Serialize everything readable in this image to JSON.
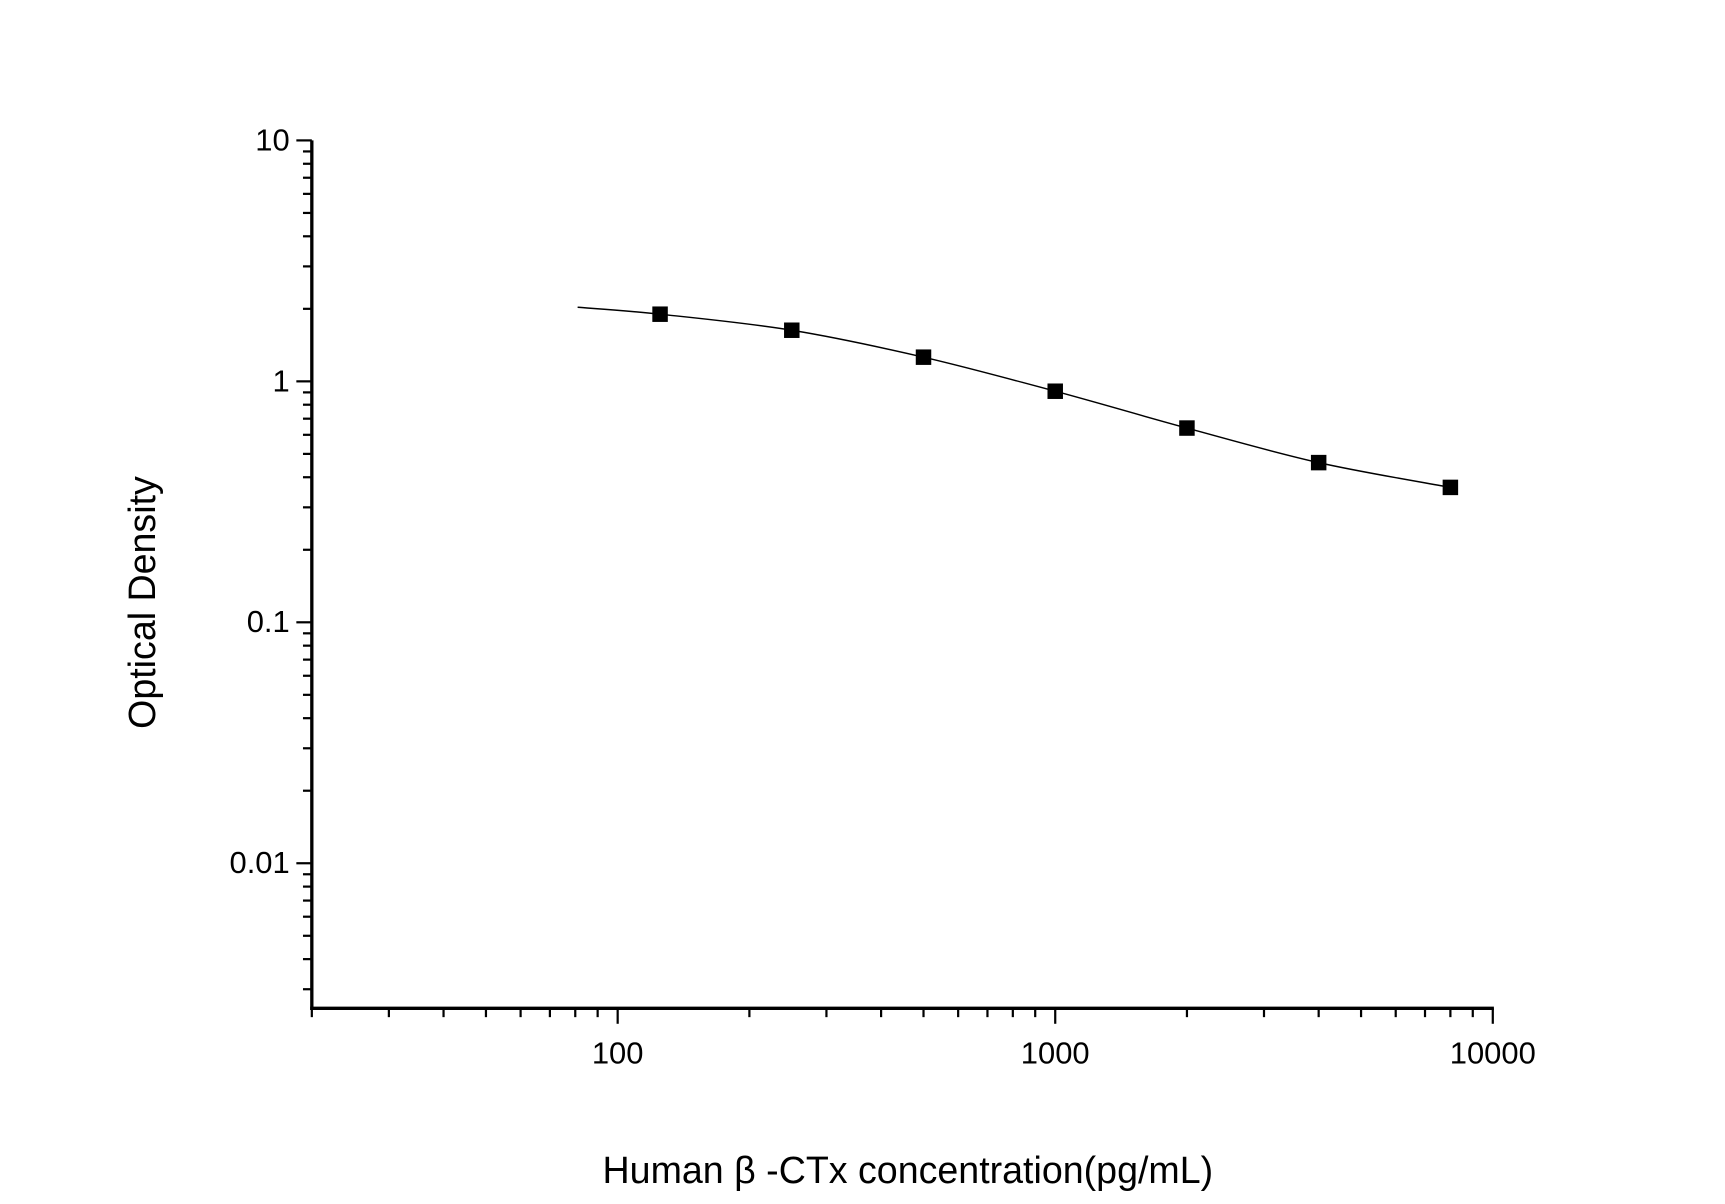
{
  "chart_data": {
    "type": "scatter",
    "title": "",
    "xlabel": "Human β -CTx concentration(pg/mL)",
    "ylabel": "Optical Density",
    "x_scale": "log",
    "y_scale": "log",
    "xlim": [
      20,
      10000
    ],
    "ylim": [
      0.0025,
      10
    ],
    "x_ticks": [
      {
        "value": 100,
        "label": "100"
      },
      {
        "value": 1000,
        "label": "1000"
      },
      {
        "value": 10000,
        "label": "10000"
      }
    ],
    "y_ticks": [
      {
        "value": 10,
        "label": "10"
      },
      {
        "value": 1,
        "label": "1"
      },
      {
        "value": 0.1,
        "label": "0.1"
      },
      {
        "value": 0.01,
        "label": "0.01"
      }
    ],
    "grid": false,
    "marker": "square",
    "color": "#000000",
    "series": [
      {
        "x": [
          125,
          250,
          500,
          1000,
          2000,
          4000,
          8000
        ],
        "y": [
          1.9,
          1.63,
          1.26,
          0.91,
          0.64,
          0.46,
          0.363
        ]
      }
    ],
    "fit_curve": {
      "x": [
        81,
        125,
        250,
        500,
        1000,
        2000,
        4000,
        8000
      ],
      "y": [
        2.03,
        1.9,
        1.63,
        1.26,
        0.91,
        0.64,
        0.46,
        0.363
      ]
    }
  }
}
